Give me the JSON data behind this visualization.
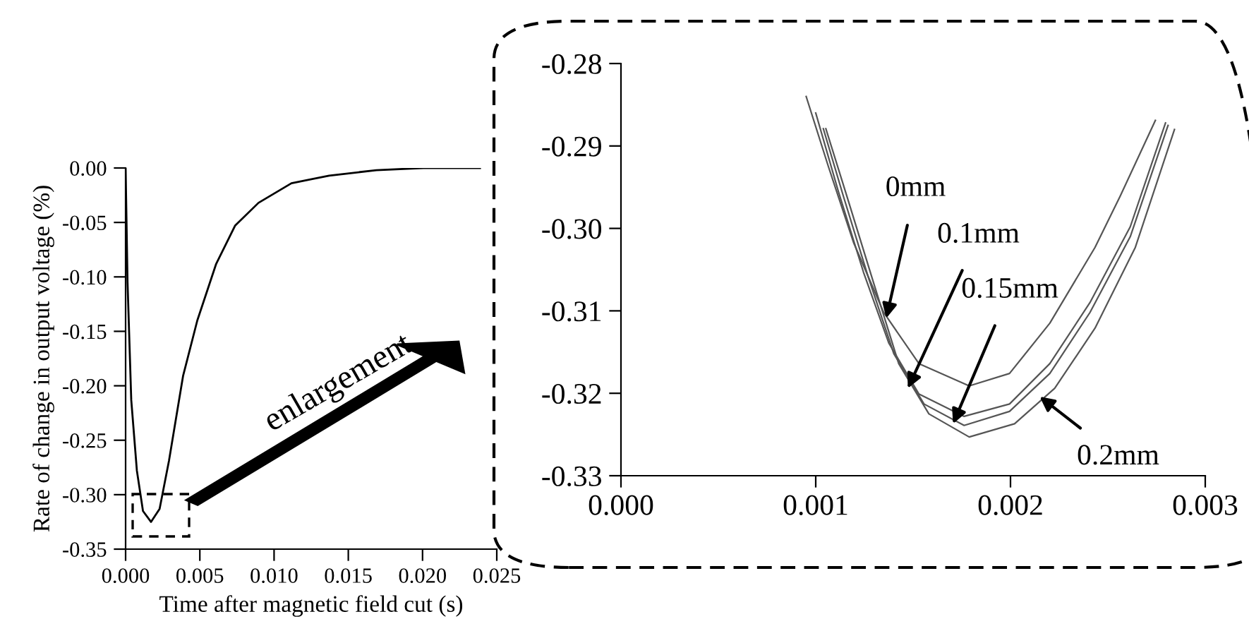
{
  "chart_data": [
    {
      "type": "line",
      "xlabel": "Time after magnetic field cut (s)",
      "ylabel": "Rate of change in output voltage (%)",
      "series": [
        {
          "color": "#000000",
          "x": [
            0,
            0.00013,
            0.00038,
            0.00076,
            0.00117,
            0.00171,
            0.00229,
            0.00292,
            0.00387,
            0.00483,
            0.0061,
            0.00737,
            0.00895,
            0.01117,
            0.01371,
            0.01689,
            0.02006,
            0.02387
          ],
          "values": [
            0,
            -0.105,
            -0.213,
            -0.278,
            -0.315,
            -0.325,
            -0.313,
            -0.269,
            -0.191,
            -0.14,
            -0.088,
            -0.053,
            -0.032,
            -0.014,
            -0.007,
            -0.002,
            0,
            0
          ]
        }
      ],
      "xlim": [
        0,
        0.025
      ],
      "xticks": [
        {
          "value": 0,
          "label": "0.000"
        },
        {
          "value": 0.005,
          "label": "0.005"
        },
        {
          "value": 0.01,
          "label": "0.010"
        },
        {
          "value": 0.015,
          "label": "0.015"
        },
        {
          "value": 0.02,
          "label": "0.020"
        },
        {
          "value": 0.025,
          "label": "0.025"
        }
      ],
      "ylim": [
        -0.35,
        0
      ],
      "yticks": [
        {
          "value": -0.35,
          "label": "-0.35"
        },
        {
          "value": -0.3,
          "label": "-0.30"
        },
        {
          "value": -0.25,
          "label": "-0.25"
        },
        {
          "value": -0.2,
          "label": "-0.20"
        },
        {
          "value": -0.15,
          "label": "-0.15"
        },
        {
          "value": -0.1,
          "label": "-0.10"
        },
        {
          "value": -0.05,
          "label": "-0.05"
        },
        {
          "value": 0,
          "label": "0.00"
        }
      ],
      "annotations": [
        "enlargement"
      ],
      "grid": false,
      "legend": false
    },
    {
      "type": "line",
      "series": [
        {
          "color": "#555555",
          "x": [
            0.000951,
            0.001065,
            0.001194,
            0.001349,
            0.00153,
            0.001788,
            0.001995,
            0.002202,
            0.002434,
            0.002563,
            0.002744
          ],
          "values": [
            -0.284,
            -0.2925,
            -0.3017,
            -0.3102,
            -0.3164,
            -0.3191,
            -0.3176,
            -0.3115,
            -0.3023,
            -0.2961,
            -0.2869
          ]
        },
        {
          "color": "#555555",
          "x": [
            0.001,
            0.001116,
            0.001245,
            0.001375,
            0.00153,
            0.001762,
            0.001995,
            0.002202,
            0.002408,
            0.002615,
            0.002796
          ],
          "values": [
            -0.286,
            -0.2955,
            -0.3053,
            -0.3139,
            -0.3201,
            -0.3228,
            -0.3213,
            -0.3164,
            -0.309,
            -0.2998,
            -0.2872
          ]
        },
        {
          "color": "#555555",
          "x": [
            0.001039,
            0.001142,
            0.001271,
            0.001401,
            0.001556,
            0.001762,
            0.001995,
            0.002202,
            0.002408,
            0.002615,
            0.002809
          ],
          "values": [
            -0.2879,
            -0.2961,
            -0.306,
            -0.3152,
            -0.3213,
            -0.3239,
            -0.3222,
            -0.3176,
            -0.3102,
            -0.301,
            -0.2875
          ]
        },
        {
          "color": "#555555",
          "x": [
            0.001052,
            0.001168,
            0.001297,
            0.001426,
            0.001581,
            0.001788,
            0.002021,
            0.002227,
            0.002434,
            0.002641,
            0.002842
          ],
          "values": [
            -0.2879,
            -0.2967,
            -0.3066,
            -0.3164,
            -0.3225,
            -0.3253,
            -0.3237,
            -0.3194,
            -0.3121,
            -0.3023,
            -0.288
          ]
        }
      ],
      "xlim": [
        0,
        0.003
      ],
      "xticks": [
        {
          "value": 0,
          "label": "0.000"
        },
        {
          "value": 0.001,
          "label": "0.001"
        },
        {
          "value": 0.002,
          "label": "0.002"
        },
        {
          "value": 0.003,
          "label": "0.003"
        }
      ],
      "ylim": [
        -0.33,
        -0.28
      ],
      "yticks": [
        {
          "value": -0.33,
          "label": "-0.33"
        },
        {
          "value": -0.32,
          "label": "-0.32"
        },
        {
          "value": -0.31,
          "label": "-0.31"
        },
        {
          "value": -0.3,
          "label": "-0.30"
        },
        {
          "value": -0.29,
          "label": "-0.29"
        },
        {
          "value": -0.28,
          "label": "-0.28"
        }
      ],
      "annotations": [
        {
          "text": "0mm",
          "x": 0.001362,
          "y": -0.3109
        },
        {
          "text": "0.1mm",
          "x": 0.001473,
          "y": -0.3194
        },
        {
          "text": "0.15mm",
          "x": 0.001705,
          "y": -0.3237
        },
        {
          "text": "0.2mm",
          "x": 0.00215,
          "y": -0.3204
        }
      ],
      "grid": false,
      "legend": false
    }
  ]
}
